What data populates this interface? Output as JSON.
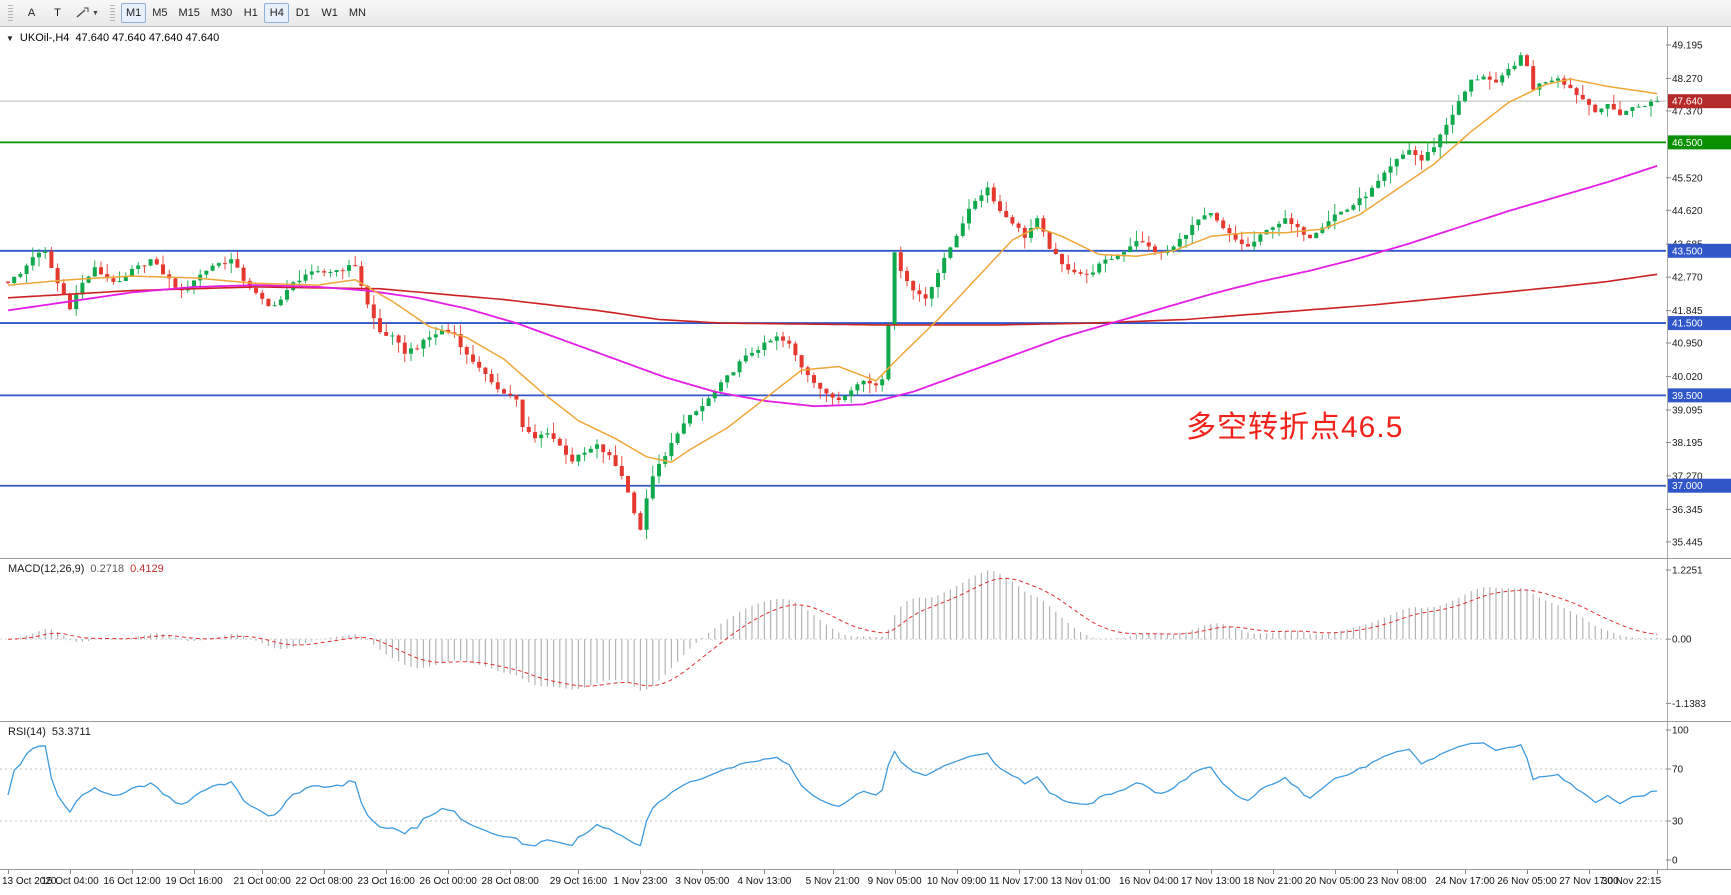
{
  "toolbar": {
    "arrow_tool": "A",
    "text_tool": "T",
    "timeframes": [
      {
        "label": "M1",
        "pressed": true
      },
      {
        "label": "M5",
        "pressed": false
      },
      {
        "label": "M15",
        "pressed": false
      },
      {
        "label": "M30",
        "pressed": false
      },
      {
        "label": "H1",
        "pressed": false
      },
      {
        "label": "H4",
        "pressed": true
      },
      {
        "label": "D1",
        "pressed": false
      },
      {
        "label": "W1",
        "pressed": false
      },
      {
        "label": "MN",
        "pressed": false
      }
    ]
  },
  "chart": {
    "title": "UKOil-,H4",
    "quotes": "47.640 47.640 47.640 47.640",
    "annotation": "多空转折点46.5"
  },
  "macd_panel": {
    "name": "MACD(12,26,9)",
    "value_main": "0.2718",
    "value_signal": "0.4129",
    "ticks": [
      "1.2251",
      "0.00",
      "-1.1383"
    ]
  },
  "rsi_panel": {
    "name": "RSI(14)",
    "value": "53.3711",
    "ticks": [
      "100",
      "70",
      "30",
      "0"
    ]
  },
  "chart_data": {
    "type": "candlestick",
    "symbol": "UKOil-",
    "timeframe": "H4",
    "last_price": 47.64,
    "num_bars": 267,
    "up_color": "#0fa94b",
    "down_color": "#e5382e",
    "y_range": [
      35.0,
      49.72
    ],
    "y_ticks": [
      49.195,
      48.27,
      47.37,
      45.52,
      44.62,
      43.685,
      42.77,
      41.845,
      40.95,
      40.02,
      39.095,
      38.195,
      37.27,
      36.345,
      35.445
    ],
    "levels": [
      {
        "value": 47.64,
        "label": "47.640",
        "color": "#bbbbbb",
        "badge": "#b52b2b",
        "style": "price"
      },
      {
        "value": 46.5,
        "label": "46.500",
        "color": "#089000",
        "badge": "#089000",
        "style": "solid"
      },
      {
        "value": 43.5,
        "label": "43.500",
        "color": "#3056c8",
        "badge": "#3056c8",
        "style": "solid"
      },
      {
        "value": 41.5,
        "label": "41.500",
        "color": "#3056c8",
        "badge": "#3056c8",
        "style": "solid"
      },
      {
        "value": 39.5,
        "label": "39.500",
        "color": "#3056c8",
        "badge": "#3056c8",
        "style": "solid"
      },
      {
        "value": 37.0,
        "label": "37.000",
        "color": "#3056c8",
        "badge": "#3056c8",
        "style": "solid"
      }
    ],
    "price_path": [
      [
        0,
        42.65
      ],
      [
        2,
        42.85
      ],
      [
        4,
        43.35
      ],
      [
        6,
        43.45
      ],
      [
        8,
        42.6
      ],
      [
        10,
        41.95
      ],
      [
        12,
        42.6
      ],
      [
        14,
        43.0
      ],
      [
        16,
        42.75
      ],
      [
        18,
        42.6
      ],
      [
        20,
        42.95
      ],
      [
        23,
        43.25
      ],
      [
        26,
        42.7
      ],
      [
        28,
        42.35
      ],
      [
        30,
        42.7
      ],
      [
        33,
        43.1
      ],
      [
        36,
        43.25
      ],
      [
        38,
        42.7
      ],
      [
        40,
        42.3
      ],
      [
        42,
        41.95
      ],
      [
        44,
        42.15
      ],
      [
        46,
        42.6
      ],
      [
        48,
        42.85
      ],
      [
        51,
        42.9
      ],
      [
        54,
        43.0
      ],
      [
        56,
        43.1
      ],
      [
        58,
        42.0
      ],
      [
        60,
        41.25
      ],
      [
        62,
        41.1
      ],
      [
        64,
        40.7
      ],
      [
        66,
        40.85
      ],
      [
        68,
        41.1
      ],
      [
        70,
        41.3
      ],
      [
        72,
        41.2
      ],
      [
        74,
        40.6
      ],
      [
        76,
        40.3
      ],
      [
        78,
        39.8
      ],
      [
        80,
        39.6
      ],
      [
        82,
        39.4
      ],
      [
        83,
        38.6
      ],
      [
        85,
        38.3
      ],
      [
        87,
        38.5
      ],
      [
        89,
        38.1
      ],
      [
        91,
        37.7
      ],
      [
        93,
        37.9
      ],
      [
        95,
        38.1
      ],
      [
        97,
        37.8
      ],
      [
        99,
        37.3
      ],
      [
        101,
        36.3
      ],
      [
        102,
        35.8
      ],
      [
        103,
        36.6
      ],
      [
        104,
        37.3
      ],
      [
        106,
        37.8
      ],
      [
        108,
        38.5
      ],
      [
        110,
        38.9
      ],
      [
        112,
        39.2
      ],
      [
        114,
        39.6
      ],
      [
        116,
        40.0
      ],
      [
        118,
        40.4
      ],
      [
        120,
        40.7
      ],
      [
        122,
        40.9
      ],
      [
        124,
        41.1
      ],
      [
        126,
        40.9
      ],
      [
        128,
        40.3
      ],
      [
        130,
        39.9
      ],
      [
        132,
        39.5
      ],
      [
        134,
        39.4
      ],
      [
        136,
        39.7
      ],
      [
        138,
        39.9
      ],
      [
        140,
        39.8
      ],
      [
        141,
        40.0
      ],
      [
        142,
        41.5
      ],
      [
        143,
        43.4
      ],
      [
        144,
        43.0
      ],
      [
        146,
        42.4
      ],
      [
        148,
        42.2
      ],
      [
        150,
        42.9
      ],
      [
        152,
        43.6
      ],
      [
        154,
        44.3
      ],
      [
        156,
        44.9
      ],
      [
        158,
        45.25
      ],
      [
        160,
        44.6
      ],
      [
        162,
        44.3
      ],
      [
        164,
        43.9
      ],
      [
        166,
        44.35
      ],
      [
        168,
        43.6
      ],
      [
        170,
        43.1
      ],
      [
        172,
        42.95
      ],
      [
        174,
        42.8
      ],
      [
        176,
        43.1
      ],
      [
        178,
        43.3
      ],
      [
        180,
        43.5
      ],
      [
        182,
        43.8
      ],
      [
        184,
        43.6
      ],
      [
        186,
        43.4
      ],
      [
        188,
        43.6
      ],
      [
        190,
        44.0
      ],
      [
        192,
        44.35
      ],
      [
        194,
        44.5
      ],
      [
        196,
        44.1
      ],
      [
        198,
        43.8
      ],
      [
        200,
        43.6
      ],
      [
        202,
        43.9
      ],
      [
        204,
        44.2
      ],
      [
        206,
        44.35
      ],
      [
        208,
        44.1
      ],
      [
        210,
        43.9
      ],
      [
        212,
        44.2
      ],
      [
        214,
        44.5
      ],
      [
        216,
        44.65
      ],
      [
        218,
        44.9
      ],
      [
        220,
        45.2
      ],
      [
        222,
        45.6
      ],
      [
        224,
        46.0
      ],
      [
        226,
        46.3
      ],
      [
        228,
        46.0
      ],
      [
        230,
        46.4
      ],
      [
        232,
        47.0
      ],
      [
        234,
        47.6
      ],
      [
        236,
        48.2
      ],
      [
        238,
        48.35
      ],
      [
        240,
        48.1
      ],
      [
        242,
        48.5
      ],
      [
        244,
        48.85
      ],
      [
        245,
        48.6
      ],
      [
        246,
        48.0
      ],
      [
        248,
        48.2
      ],
      [
        250,
        48.3
      ],
      [
        252,
        48.0
      ],
      [
        254,
        47.7
      ],
      [
        256,
        47.4
      ],
      [
        258,
        47.5
      ],
      [
        260,
        47.3
      ],
      [
        262,
        47.45
      ],
      [
        264,
        47.55
      ],
      [
        266,
        47.64
      ]
    ],
    "ma_lines": [
      {
        "name": "slow-ma",
        "color": "#cc2222",
        "width": 1.6,
        "path": [
          [
            0,
            42.2
          ],
          [
            20,
            42.4
          ],
          [
            40,
            42.5
          ],
          [
            60,
            42.45
          ],
          [
            80,
            42.15
          ],
          [
            95,
            41.85
          ],
          [
            105,
            41.6
          ],
          [
            115,
            41.5
          ],
          [
            140,
            41.45
          ],
          [
            160,
            41.45
          ],
          [
            175,
            41.5
          ],
          [
            190,
            41.6
          ],
          [
            205,
            41.8
          ],
          [
            220,
            42.0
          ],
          [
            235,
            42.25
          ],
          [
            250,
            42.5
          ],
          [
            258,
            42.65
          ],
          [
            266,
            42.85
          ]
        ]
      },
      {
        "name": "mid-ma",
        "color": "#e41ee4",
        "width": 1.8,
        "path": [
          [
            0,
            41.85
          ],
          [
            10,
            42.1
          ],
          [
            20,
            42.35
          ],
          [
            30,
            42.5
          ],
          [
            40,
            42.55
          ],
          [
            50,
            42.5
          ],
          [
            58,
            42.4
          ],
          [
            66,
            42.2
          ],
          [
            74,
            41.9
          ],
          [
            82,
            41.5
          ],
          [
            90,
            41.0
          ],
          [
            98,
            40.5
          ],
          [
            106,
            40.0
          ],
          [
            114,
            39.6
          ],
          [
            122,
            39.35
          ],
          [
            130,
            39.2
          ],
          [
            138,
            39.25
          ],
          [
            146,
            39.6
          ],
          [
            154,
            40.1
          ],
          [
            162,
            40.6
          ],
          [
            170,
            41.1
          ],
          [
            178,
            41.5
          ],
          [
            186,
            41.9
          ],
          [
            194,
            42.3
          ],
          [
            202,
            42.65
          ],
          [
            210,
            42.95
          ],
          [
            218,
            43.3
          ],
          [
            226,
            43.7
          ],
          [
            234,
            44.15
          ],
          [
            242,
            44.6
          ],
          [
            250,
            45.0
          ],
          [
            258,
            45.4
          ],
          [
            266,
            45.85
          ]
        ]
      },
      {
        "name": "fast-ma",
        "color": "#efa73a",
        "width": 1.5,
        "path": [
          [
            0,
            42.55
          ],
          [
            10,
            42.7
          ],
          [
            20,
            42.8
          ],
          [
            30,
            42.75
          ],
          [
            40,
            42.6
          ],
          [
            50,
            42.55
          ],
          [
            56,
            42.7
          ],
          [
            62,
            42.1
          ],
          [
            68,
            41.4
          ],
          [
            74,
            41.1
          ],
          [
            80,
            40.5
          ],
          [
            86,
            39.6
          ],
          [
            92,
            38.8
          ],
          [
            98,
            38.3
          ],
          [
            103,
            37.8
          ],
          [
            107,
            37.65
          ],
          [
            110,
            38.0
          ],
          [
            116,
            38.6
          ],
          [
            122,
            39.4
          ],
          [
            128,
            40.2
          ],
          [
            134,
            40.3
          ],
          [
            140,
            39.9
          ],
          [
            144,
            40.6
          ],
          [
            150,
            41.6
          ],
          [
            156,
            42.7
          ],
          [
            162,
            43.8
          ],
          [
            166,
            44.15
          ],
          [
            170,
            43.9
          ],
          [
            176,
            43.4
          ],
          [
            182,
            43.35
          ],
          [
            188,
            43.5
          ],
          [
            194,
            43.9
          ],
          [
            200,
            44.0
          ],
          [
            206,
            44.0
          ],
          [
            212,
            44.1
          ],
          [
            218,
            44.5
          ],
          [
            224,
            45.2
          ],
          [
            230,
            45.9
          ],
          [
            236,
            46.8
          ],
          [
            242,
            47.6
          ],
          [
            248,
            48.1
          ],
          [
            252,
            48.25
          ],
          [
            258,
            48.05
          ],
          [
            266,
            47.85
          ]
        ]
      }
    ],
    "macd": {
      "fast": 12,
      "slow": 26,
      "signal": 9,
      "y_range": [
        -1.45,
        1.42
      ],
      "tick_values": [
        1.2251,
        0,
        -1.1383
      ],
      "hist_color": "#b4b4b4",
      "signal_color": "#e03030"
    },
    "rsi": {
      "period": 14,
      "levels": [
        70,
        30
      ],
      "color": "#3e9bdf",
      "tick_values": [
        100,
        70,
        30,
        0
      ]
    },
    "time_labels": [
      {
        "bar": 0,
        "text": "13 Oct 2020"
      },
      {
        "bar": 10,
        "text": "15 Oct 04:00"
      },
      {
        "bar": 20,
        "text": "16 Oct 12:00"
      },
      {
        "bar": 30,
        "text": "19 Oct 16:00"
      },
      {
        "bar": 41,
        "text": "21 Oct 00:00"
      },
      {
        "bar": 51,
        "text": "22 Oct 08:00"
      },
      {
        "bar": 61,
        "text": "23 Oct 16:00"
      },
      {
        "bar": 71,
        "text": "26 Oct 00:00"
      },
      {
        "bar": 81,
        "text": "28 Oct 08:00"
      },
      {
        "bar": 92,
        "text": "29 Oct 16:00"
      },
      {
        "bar": 102,
        "text": "1 Nov 23:00"
      },
      {
        "bar": 112,
        "text": "3 Nov 05:00"
      },
      {
        "bar": 122,
        "text": "4 Nov 13:00"
      },
      {
        "bar": 133,
        "text": "5 Nov 21:00"
      },
      {
        "bar": 143,
        "text": "9 Nov 05:00"
      },
      {
        "bar": 153,
        "text": "10 Nov 09:00"
      },
      {
        "bar": 163,
        "text": "11 Nov 17:00"
      },
      {
        "bar": 173,
        "text": "13 Nov 01:00"
      },
      {
        "bar": 184,
        "text": "16 Nov 04:00"
      },
      {
        "bar": 194,
        "text": "17 Nov 13:00"
      },
      {
        "bar": 204,
        "text": "18 Nov 21:00"
      },
      {
        "bar": 214,
        "text": "20 Nov 05:00"
      },
      {
        "bar": 224,
        "text": "23 Nov 08:00"
      },
      {
        "bar": 235,
        "text": "24 Nov 17:00"
      },
      {
        "bar": 245,
        "text": "26 Nov 05:00"
      },
      {
        "bar": 255,
        "text": "27 Nov 17:00"
      },
      {
        "bar": 266,
        "text": "30 Nov 22:15"
      }
    ]
  }
}
